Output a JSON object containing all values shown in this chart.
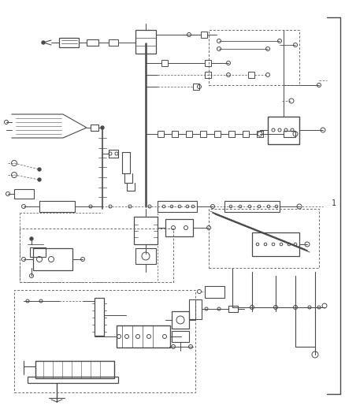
{
  "bg_color": "#ffffff",
  "lc": "#4a4a4a",
  "dc": "#6a6a6a",
  "figsize": [
    4.38,
    5.33
  ],
  "dpi": 100
}
